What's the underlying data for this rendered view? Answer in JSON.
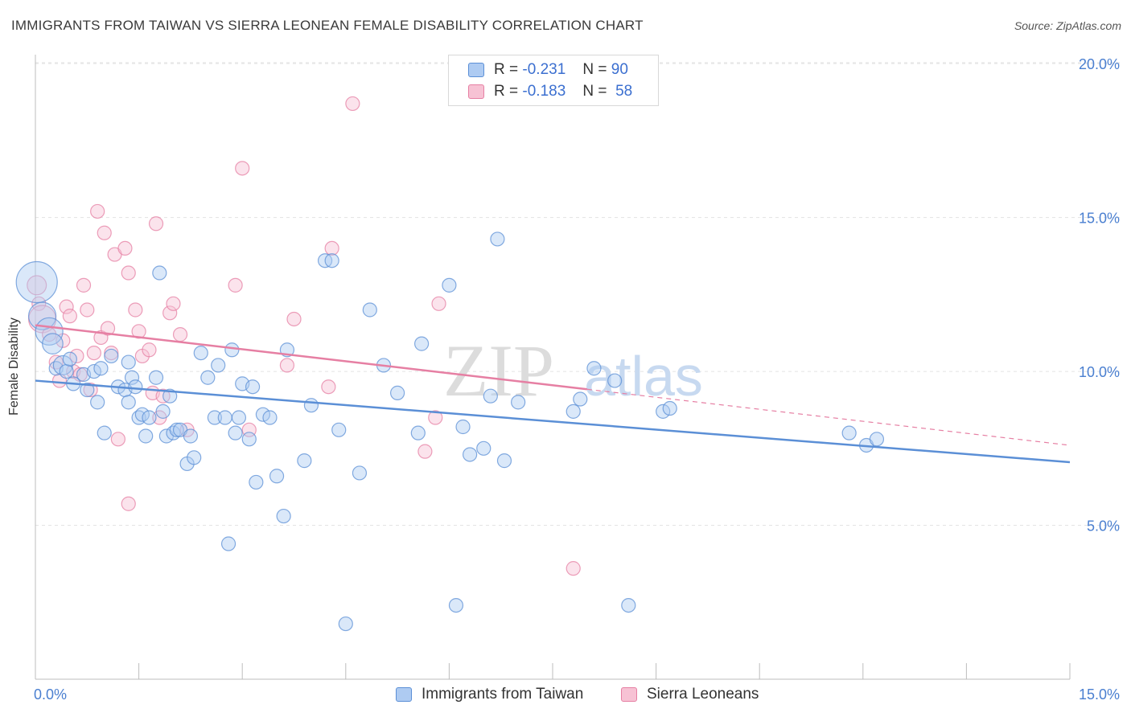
{
  "title": "IMMIGRANTS FROM TAIWAN VS SIERRA LEONEAN FEMALE DISABILITY CORRELATION CHART",
  "source": "Source: ZipAtlas.com",
  "legend_stats": [
    {
      "r_label": "R =",
      "r_value": "-0.231",
      "n_label": "N =",
      "n_value": "90"
    },
    {
      "r_label": "R =",
      "r_value": "-0.183",
      "n_label": "N =",
      "n_value": "58"
    }
  ],
  "watermark": {
    "zip": "ZIP",
    "atlas": "atlas"
  },
  "colors": {
    "taiwan": "#5b8fd6",
    "taiwan_fill": "#aecbf2",
    "sierra": "#e67fa3",
    "sierra_fill": "#f7c2d4",
    "accent_text": "#3b6fd0"
  },
  "chart_data": {
    "type": "scatter",
    "title": "IMMIGRANTS FROM TAIWAN VS SIERRA LEONEAN FEMALE DISABILITY CORRELATION CHART",
    "xlabel": "",
    "ylabel": "Female Disability",
    "xlim": [
      0,
      15
    ],
    "ylim": [
      0,
      20.5
    ],
    "x_tick_labels": [
      "0.0%",
      "15.0%"
    ],
    "y_ticks": [
      5,
      10,
      15,
      20
    ],
    "y_tick_labels": [
      "5.0%",
      "10.0%",
      "15.0%",
      "20.0%"
    ],
    "grid": true,
    "legend_position": "bottom",
    "series": [
      {
        "name": "Immigrants from Taiwan",
        "color": "#5b8fd6",
        "trend": {
          "x": [
            0,
            15
          ],
          "y": [
            9.7,
            7.05
          ],
          "dashed_from": null
        },
        "points": [
          [
            0.02,
            12.9,
            3
          ],
          [
            0.1,
            11.8,
            2
          ],
          [
            0.2,
            11.3,
            2
          ],
          [
            0.25,
            10.9,
            1.5
          ],
          [
            0.3,
            10.1,
            1
          ],
          [
            0.4,
            10.2,
            1.4
          ],
          [
            0.45,
            10.0,
            1
          ],
          [
            0.5,
            10.4,
            1
          ],
          [
            0.55,
            9.6,
            1
          ],
          [
            0.7,
            9.9,
            1
          ],
          [
            0.75,
            9.4,
            1
          ],
          [
            0.85,
            10.0,
            1
          ],
          [
            0.9,
            9.0,
            1
          ],
          [
            0.95,
            10.1,
            1
          ],
          [
            1.0,
            8.0,
            1
          ],
          [
            1.1,
            10.5,
            1
          ],
          [
            1.2,
            9.5,
            1
          ],
          [
            1.3,
            9.4,
            1
          ],
          [
            1.35,
            9.0,
            1
          ],
          [
            1.35,
            10.3,
            1
          ],
          [
            1.4,
            9.8,
            1
          ],
          [
            1.45,
            9.5,
            1
          ],
          [
            1.5,
            8.5,
            1
          ],
          [
            1.55,
            8.6,
            1
          ],
          [
            1.6,
            7.9,
            1
          ],
          [
            1.65,
            8.5,
            1
          ],
          [
            1.75,
            9.8,
            1
          ],
          [
            1.8,
            13.2,
            1
          ],
          [
            1.85,
            8.7,
            1
          ],
          [
            1.9,
            7.9,
            1
          ],
          [
            1.95,
            9.2,
            1
          ],
          [
            2.0,
            8.0,
            1
          ],
          [
            2.05,
            8.1,
            1
          ],
          [
            2.1,
            8.1,
            1
          ],
          [
            2.2,
            7.0,
            1
          ],
          [
            2.25,
            7.9,
            1
          ],
          [
            2.3,
            7.2,
            1
          ],
          [
            2.4,
            10.6,
            1
          ],
          [
            2.5,
            9.8,
            1
          ],
          [
            2.6,
            8.5,
            1
          ],
          [
            2.65,
            10.2,
            1
          ],
          [
            2.75,
            8.5,
            1
          ],
          [
            2.8,
            4.4,
            1
          ],
          [
            2.85,
            10.7,
            1
          ],
          [
            2.9,
            8.0,
            1
          ],
          [
            2.95,
            8.5,
            1
          ],
          [
            3.0,
            9.6,
            1
          ],
          [
            3.1,
            7.8,
            1
          ],
          [
            3.15,
            9.5,
            1
          ],
          [
            3.2,
            6.4,
            1
          ],
          [
            3.3,
            8.6,
            1
          ],
          [
            3.4,
            8.5,
            1
          ],
          [
            3.5,
            6.6,
            1
          ],
          [
            3.6,
            5.3,
            1
          ],
          [
            3.65,
            10.7,
            1
          ],
          [
            3.9,
            7.1,
            1
          ],
          [
            4.0,
            8.9,
            1
          ],
          [
            4.2,
            13.6,
            1
          ],
          [
            4.3,
            13.6,
            1
          ],
          [
            4.4,
            8.1,
            1
          ],
          [
            4.5,
            1.8,
            1
          ],
          [
            4.7,
            6.7,
            1
          ],
          [
            4.85,
            12.0,
            1
          ],
          [
            5.05,
            10.2,
            1
          ],
          [
            5.25,
            9.3,
            1
          ],
          [
            5.55,
            8.0,
            1
          ],
          [
            5.6,
            10.9,
            1
          ],
          [
            6.0,
            12.8,
            1
          ],
          [
            6.1,
            2.4,
            1
          ],
          [
            6.2,
            8.2,
            1
          ],
          [
            6.3,
            7.3,
            1
          ],
          [
            6.5,
            7.5,
            1
          ],
          [
            6.6,
            9.2,
            1
          ],
          [
            6.7,
            14.3,
            1
          ],
          [
            6.8,
            7.1,
            1
          ],
          [
            7.0,
            9.0,
            1
          ],
          [
            7.8,
            8.7,
            1
          ],
          [
            7.9,
            9.1,
            1
          ],
          [
            8.1,
            10.1,
            1
          ],
          [
            8.4,
            9.7,
            1
          ],
          [
            8.6,
            2.4,
            1
          ],
          [
            9.1,
            8.7,
            1
          ],
          [
            9.2,
            8.8,
            1
          ],
          [
            11.8,
            8.0,
            1
          ],
          [
            12.05,
            7.6,
            1
          ],
          [
            12.2,
            7.8,
            1
          ]
        ]
      },
      {
        "name": "Sierra Leoneans",
        "color": "#e67fa3",
        "trend": {
          "x": [
            0,
            15
          ],
          "y": [
            11.5,
            7.6
          ],
          "dashed_from": 8.0
        },
        "points": [
          [
            0.02,
            12.8,
            1.4
          ],
          [
            0.05,
            12.2,
            1
          ],
          [
            0.1,
            11.7,
            2
          ],
          [
            0.2,
            11.2,
            1
          ],
          [
            0.3,
            10.3,
            1
          ],
          [
            0.35,
            9.7,
            1
          ],
          [
            0.4,
            11.0,
            1
          ],
          [
            0.45,
            12.1,
            1
          ],
          [
            0.5,
            11.8,
            1
          ],
          [
            0.55,
            10.0,
            1
          ],
          [
            0.6,
            10.5,
            1
          ],
          [
            0.65,
            9.9,
            1
          ],
          [
            0.7,
            12.8,
            1
          ],
          [
            0.75,
            12.0,
            1
          ],
          [
            0.8,
            9.4,
            1
          ],
          [
            0.85,
            10.6,
            1
          ],
          [
            0.9,
            15.2,
            1
          ],
          [
            0.95,
            11.1,
            1
          ],
          [
            1.0,
            14.5,
            1
          ],
          [
            1.05,
            11.4,
            1
          ],
          [
            1.1,
            10.6,
            1
          ],
          [
            1.15,
            13.8,
            1
          ],
          [
            1.2,
            7.8,
            1
          ],
          [
            1.3,
            14.0,
            1
          ],
          [
            1.35,
            13.2,
            1
          ],
          [
            1.35,
            5.7,
            1
          ],
          [
            1.45,
            12.0,
            1
          ],
          [
            1.5,
            11.3,
            1
          ],
          [
            1.55,
            10.5,
            1
          ],
          [
            1.65,
            10.7,
            1
          ],
          [
            1.7,
            9.3,
            1
          ],
          [
            1.75,
            14.8,
            1
          ],
          [
            1.8,
            8.5,
            1
          ],
          [
            1.85,
            9.2,
            1
          ],
          [
            1.95,
            11.9,
            1
          ],
          [
            2.0,
            12.2,
            1
          ],
          [
            2.1,
            11.2,
            1
          ],
          [
            2.2,
            8.1,
            1
          ],
          [
            2.9,
            12.8,
            1
          ],
          [
            3.0,
            16.6,
            1
          ],
          [
            3.1,
            8.1,
            1
          ],
          [
            3.65,
            10.2,
            1
          ],
          [
            3.75,
            11.7,
            1
          ],
          [
            4.25,
            9.5,
            1
          ],
          [
            4.3,
            14.0,
            1
          ],
          [
            4.6,
            18.7,
            1
          ],
          [
            5.85,
            12.2,
            1
          ],
          [
            5.65,
            7.4,
            1
          ],
          [
            5.8,
            8.5,
            1
          ],
          [
            7.8,
            3.6,
            1
          ]
        ]
      }
    ]
  }
}
